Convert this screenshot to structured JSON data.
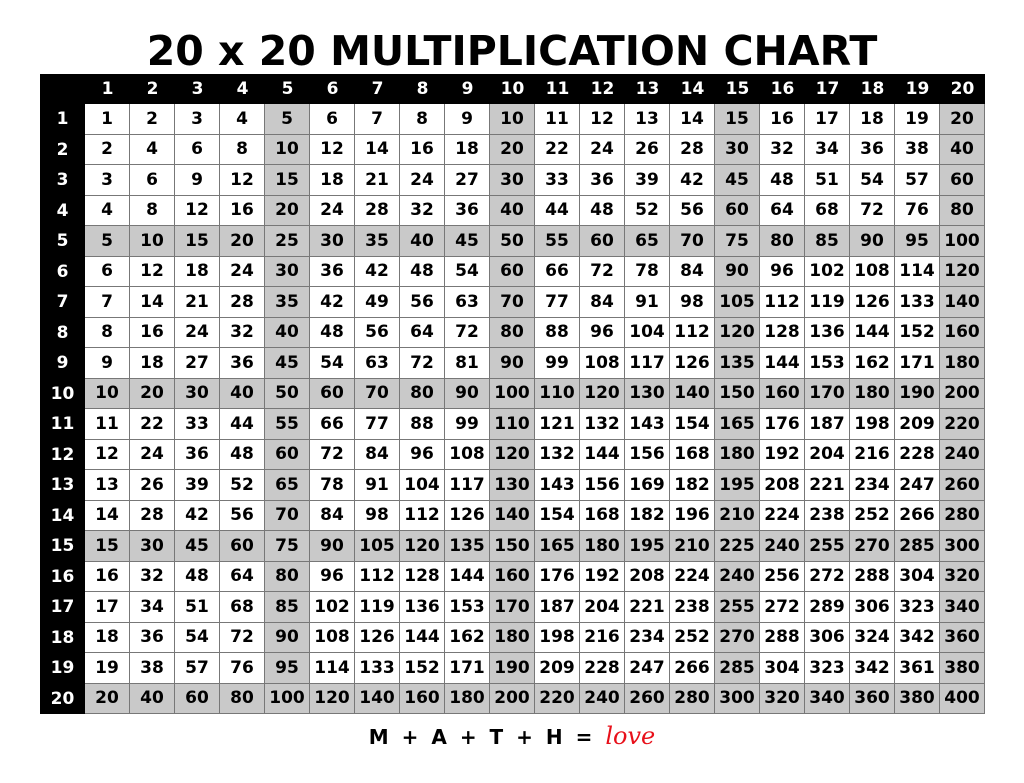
{
  "title": "20 x 20 MULTIPLICATION CHART",
  "column_headers": [
    "1",
    "2",
    "3",
    "4",
    "5",
    "6",
    "7",
    "8",
    "9",
    "10",
    "11",
    "12",
    "13",
    "14",
    "15",
    "16",
    "17",
    "18",
    "19",
    "20"
  ],
  "row_headers": [
    "1",
    "2",
    "3",
    "4",
    "5",
    "6",
    "7",
    "8",
    "9",
    "10",
    "11",
    "12",
    "13",
    "14",
    "15",
    "16",
    "17",
    "18",
    "19",
    "20"
  ],
  "highlight_color": "#c9c9c9",
  "rows": [
    [
      1,
      2,
      3,
      4,
      5,
      6,
      7,
      8,
      9,
      10,
      11,
      12,
      13,
      14,
      15,
      16,
      17,
      18,
      19,
      20
    ],
    [
      2,
      4,
      6,
      8,
      10,
      12,
      14,
      16,
      18,
      20,
      22,
      24,
      26,
      28,
      30,
      32,
      34,
      36,
      38,
      40
    ],
    [
      3,
      6,
      9,
      12,
      15,
      18,
      21,
      24,
      27,
      30,
      33,
      36,
      39,
      42,
      45,
      48,
      51,
      54,
      57,
      60
    ],
    [
      4,
      8,
      12,
      16,
      20,
      24,
      28,
      32,
      36,
      40,
      44,
      48,
      52,
      56,
      60,
      64,
      68,
      72,
      76,
      80
    ],
    [
      5,
      10,
      15,
      20,
      25,
      30,
      35,
      40,
      45,
      50,
      55,
      60,
      65,
      70,
      75,
      80,
      85,
      90,
      95,
      100
    ],
    [
      6,
      12,
      18,
      24,
      30,
      36,
      42,
      48,
      54,
      60,
      66,
      72,
      78,
      84,
      90,
      96,
      102,
      108,
      114,
      120
    ],
    [
      7,
      14,
      21,
      28,
      35,
      42,
      49,
      56,
      63,
      70,
      77,
      84,
      91,
      98,
      105,
      112,
      119,
      126,
      133,
      140
    ],
    [
      8,
      16,
      24,
      32,
      40,
      48,
      56,
      64,
      72,
      80,
      88,
      96,
      104,
      112,
      120,
      128,
      136,
      144,
      152,
      160
    ],
    [
      9,
      18,
      27,
      36,
      45,
      54,
      63,
      72,
      81,
      90,
      99,
      108,
      117,
      126,
      135,
      144,
      153,
      162,
      171,
      180
    ],
    [
      10,
      20,
      30,
      40,
      50,
      60,
      70,
      80,
      90,
      100,
      110,
      120,
      130,
      140,
      150,
      160,
      170,
      180,
      190,
      200
    ],
    [
      11,
      22,
      33,
      44,
      55,
      66,
      77,
      88,
      99,
      110,
      121,
      132,
      143,
      154,
      165,
      176,
      187,
      198,
      209,
      220
    ],
    [
      12,
      24,
      36,
      48,
      60,
      72,
      84,
      96,
      108,
      120,
      132,
      144,
      156,
      168,
      180,
      192,
      204,
      216,
      228,
      240
    ],
    [
      13,
      26,
      39,
      52,
      65,
      78,
      91,
      104,
      117,
      130,
      143,
      156,
      169,
      182,
      195,
      208,
      221,
      234,
      247,
      260
    ],
    [
      14,
      28,
      42,
      56,
      70,
      84,
      98,
      112,
      126,
      140,
      154,
      168,
      182,
      196,
      210,
      224,
      238,
      252,
      266,
      280
    ],
    [
      15,
      30,
      45,
      60,
      75,
      90,
      105,
      120,
      135,
      150,
      165,
      180,
      195,
      210,
      225,
      240,
      255,
      270,
      285,
      300
    ],
    [
      16,
      32,
      48,
      64,
      80,
      96,
      112,
      128,
      144,
      160,
      176,
      192,
      208,
      224,
      240,
      256,
      272,
      288,
      304,
      320
    ],
    [
      17,
      34,
      51,
      68,
      85,
      102,
      119,
      136,
      153,
      170,
      187,
      204,
      221,
      238,
      255,
      272,
      289,
      306,
      323,
      340
    ],
    [
      18,
      36,
      54,
      72,
      90,
      108,
      126,
      144,
      162,
      180,
      198,
      216,
      234,
      252,
      270,
      288,
      306,
      324,
      342,
      360
    ],
    [
      19,
      38,
      57,
      76,
      95,
      114,
      133,
      152,
      171,
      190,
      209,
      228,
      247,
      266,
      285,
      304,
      323,
      342,
      361,
      380
    ],
    [
      20,
      40,
      60,
      80,
      100,
      120,
      140,
      160,
      180,
      200,
      220,
      240,
      260,
      280,
      300,
      320,
      340,
      360,
      380,
      400
    ]
  ],
  "footer": {
    "text": "M + A + T + H =",
    "logo_text": "love"
  }
}
